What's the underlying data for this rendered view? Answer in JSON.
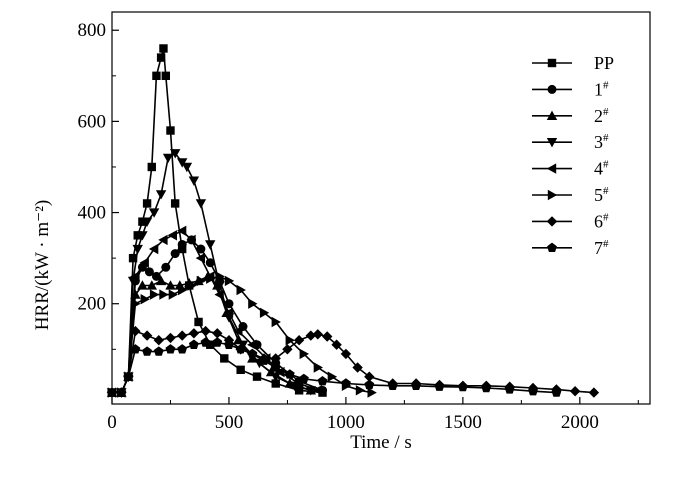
{
  "chart_data": {
    "type": "line",
    "xlabel": "Time / s",
    "ylabel": "HRR/(kW · m⁻²)",
    "xlim": [
      0,
      2300
    ],
    "ylim": [
      -20,
      840
    ],
    "xticks": [
      0,
      500,
      1000,
      1500,
      2000
    ],
    "yticks": [
      200,
      400,
      600,
      800
    ],
    "grid": false,
    "legend_position": "top-right",
    "series": [
      {
        "name": "PP",
        "marker": "square",
        "x": [
          0,
          40,
          70,
          90,
          110,
          130,
          150,
          170,
          190,
          210,
          220,
          230,
          250,
          270,
          300,
          330,
          370,
          420,
          480,
          550,
          620,
          700,
          800,
          900
        ],
        "y": [
          5,
          5,
          40,
          300,
          350,
          380,
          420,
          500,
          700,
          740,
          760,
          700,
          580,
          420,
          320,
          240,
          160,
          110,
          80,
          55,
          40,
          25,
          10,
          5
        ]
      },
      {
        "name": "1#",
        "marker": "circle",
        "x": [
          0,
          40,
          70,
          100,
          130,
          160,
          190,
          230,
          270,
          300,
          340,
          380,
          420,
          460,
          500,
          560,
          620,
          700,
          800,
          900
        ],
        "y": [
          5,
          5,
          40,
          250,
          280,
          270,
          260,
          280,
          310,
          330,
          340,
          320,
          290,
          250,
          200,
          150,
          110,
          70,
          30,
          10
        ]
      },
      {
        "name": "2#",
        "marker": "triangle-up",
        "x": [
          0,
          40,
          70,
          100,
          130,
          170,
          210,
          250,
          290,
          330,
          370,
          410,
          450,
          490,
          540,
          600,
          680,
          760,
          850
        ],
        "y": [
          5,
          5,
          40,
          220,
          240,
          240,
          250,
          240,
          240,
          245,
          250,
          260,
          240,
          180,
          120,
          80,
          50,
          25,
          10
        ]
      },
      {
        "name": "3#",
        "marker": "triangle-down",
        "x": [
          0,
          40,
          70,
          90,
          110,
          130,
          150,
          180,
          210,
          240,
          270,
          300,
          320,
          350,
          380,
          420,
          460,
          500,
          560,
          630,
          700,
          780,
          850
        ],
        "y": [
          5,
          5,
          40,
          250,
          320,
          350,
          380,
          400,
          440,
          520,
          530,
          510,
          500,
          470,
          420,
          330,
          240,
          170,
          110,
          70,
          40,
          20,
          10
        ]
      },
      {
        "name": "4#",
        "marker": "triangle-left",
        "x": [
          0,
          40,
          70,
          100,
          140,
          180,
          220,
          260,
          300,
          340,
          380,
          420,
          460,
          500,
          540,
          600,
          660,
          720,
          800,
          880
        ],
        "y": [
          5,
          5,
          40,
          260,
          290,
          320,
          340,
          350,
          360,
          340,
          300,
          260,
          220,
          180,
          140,
          110,
          80,
          50,
          25,
          10
        ]
      },
      {
        "name": "5#",
        "marker": "triangle-right",
        "x": [
          0,
          40,
          70,
          100,
          140,
          180,
          220,
          260,
          300,
          340,
          380,
          420,
          460,
          500,
          550,
          600,
          650,
          700,
          760,
          820,
          880,
          940,
          1000,
          1060,
          1110
        ],
        "y": [
          5,
          5,
          40,
          200,
          210,
          220,
          220,
          220,
          230,
          240,
          250,
          255,
          260,
          250,
          230,
          200,
          180,
          160,
          120,
          90,
          60,
          40,
          20,
          10,
          5
        ]
      },
      {
        "name": "6#",
        "marker": "diamond",
        "x": [
          0,
          40,
          70,
          100,
          150,
          200,
          250,
          300,
          350,
          400,
          450,
          500,
          550,
          600,
          650,
          700,
          750,
          800,
          850,
          880,
          920,
          960,
          1000,
          1050,
          1100,
          1200,
          1300,
          1400,
          1500,
          1600,
          1700,
          1800,
          1900,
          1980,
          2060
        ],
        "y": [
          5,
          5,
          40,
          140,
          130,
          120,
          125,
          130,
          135,
          140,
          135,
          120,
          100,
          90,
          80,
          80,
          100,
          120,
          130,
          133,
          128,
          110,
          90,
          60,
          40,
          25,
          25,
          22,
          20,
          20,
          18,
          15,
          12,
          8,
          5
        ]
      },
      {
        "name": "7#",
        "marker": "pentagon",
        "x": [
          0,
          40,
          70,
          100,
          150,
          200,
          250,
          300,
          350,
          400,
          450,
          500,
          550,
          600,
          650,
          700,
          760,
          820,
          900,
          1000,
          1100,
          1200,
          1300,
          1400,
          1500,
          1600,
          1700,
          1800,
          1900
        ],
        "y": [
          5,
          5,
          40,
          100,
          95,
          95,
          100,
          100,
          110,
          115,
          115,
          110,
          100,
          90,
          75,
          60,
          45,
          35,
          30,
          25,
          22,
          20,
          20,
          18,
          17,
          15,
          12,
          8,
          5
        ]
      }
    ]
  }
}
